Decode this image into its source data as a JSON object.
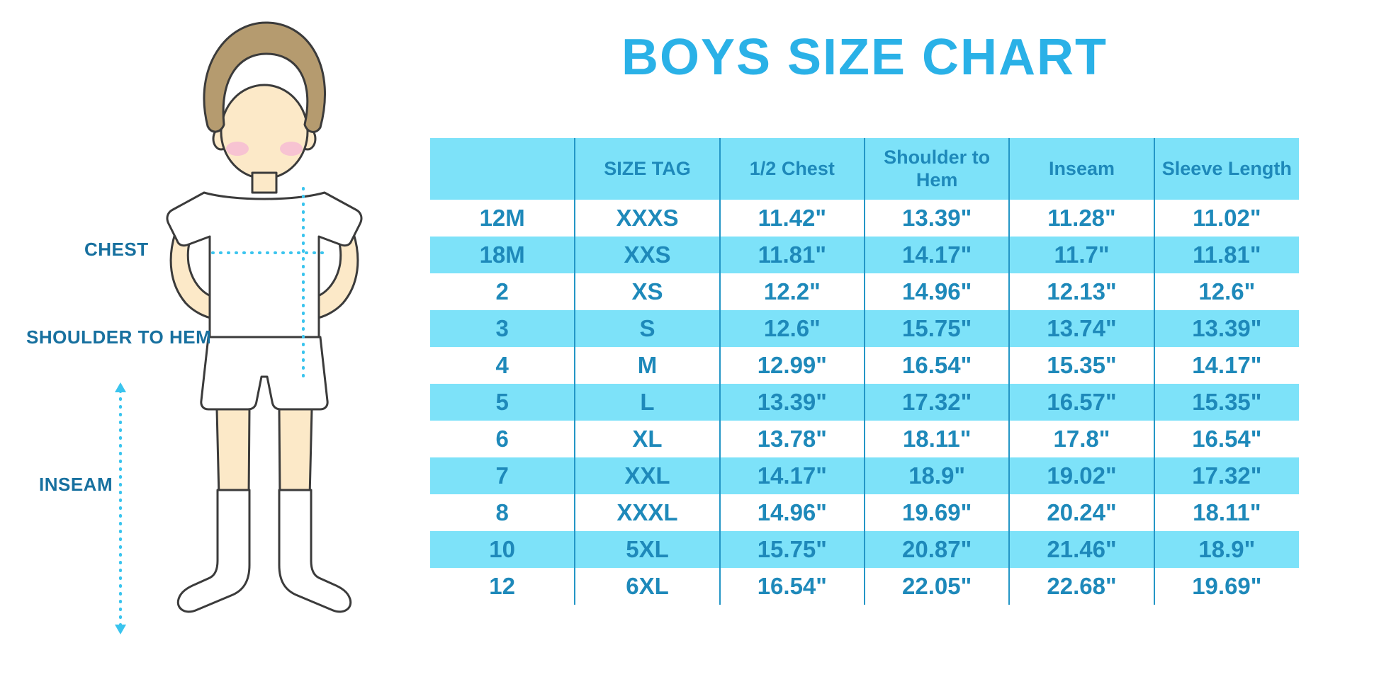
{
  "page": {
    "title": "BOYS SIZE CHART"
  },
  "diagram": {
    "labels": {
      "chest": "CHEST",
      "shoulder_to_hem": "SHOULDER TO HEM",
      "inseam": "INSEAM"
    }
  },
  "chart_data": {
    "type": "table",
    "title": "BOYS SIZE CHART",
    "columns": [
      "",
      "SIZE TAG",
      "1/2 Chest",
      "Shoulder to Hem",
      "Inseam",
      "Sleeve Length"
    ],
    "rows": [
      [
        "12M",
        "XXXS",
        "11.42\"",
        "13.39\"",
        "11.28\"",
        "11.02\""
      ],
      [
        "18M",
        "XXS",
        "11.81\"",
        "14.17\"",
        "11.7\"",
        "11.81\""
      ],
      [
        "2",
        "XS",
        "12.2\"",
        "14.96\"",
        "12.13\"",
        "12.6\""
      ],
      [
        "3",
        "S",
        "12.6\"",
        "15.75\"",
        "13.74\"",
        "13.39\""
      ],
      [
        "4",
        "M",
        "12.99\"",
        "16.54\"",
        "15.35\"",
        "14.17\""
      ],
      [
        "5",
        "L",
        "13.39\"",
        "17.32\"",
        "16.57\"",
        "15.35\""
      ],
      [
        "6",
        "XL",
        "13.78\"",
        "18.11\"",
        "17.8\"",
        "16.54\""
      ],
      [
        "7",
        "XXL",
        "14.17\"",
        "18.9\"",
        "19.02\"",
        "17.32\""
      ],
      [
        "8",
        "XXXL",
        "14.96\"",
        "19.69\"",
        "20.24\"",
        "18.11\""
      ],
      [
        "10",
        "5XL",
        "15.75\"",
        "20.87\"",
        "21.46\"",
        "18.9\""
      ],
      [
        "12",
        "6XL",
        "16.54\"",
        "22.05\"",
        "22.68\"",
        "19.69\""
      ]
    ],
    "layout": {
      "stripe_rows": "alternating starting with white",
      "grid": "vertical column separators only"
    }
  },
  "colors": {
    "title": "#2AB1E7",
    "table_text": "#1E89BA",
    "row_stripe_bg": "#7DE2F9",
    "column_line": "#2496C6",
    "measure_label_text": "#17709F",
    "dotted_measure_line": "#3AC4EE",
    "skin": "#FCE9C8",
    "hair": "#B59B6F",
    "cheek": "#F7C3D2"
  }
}
